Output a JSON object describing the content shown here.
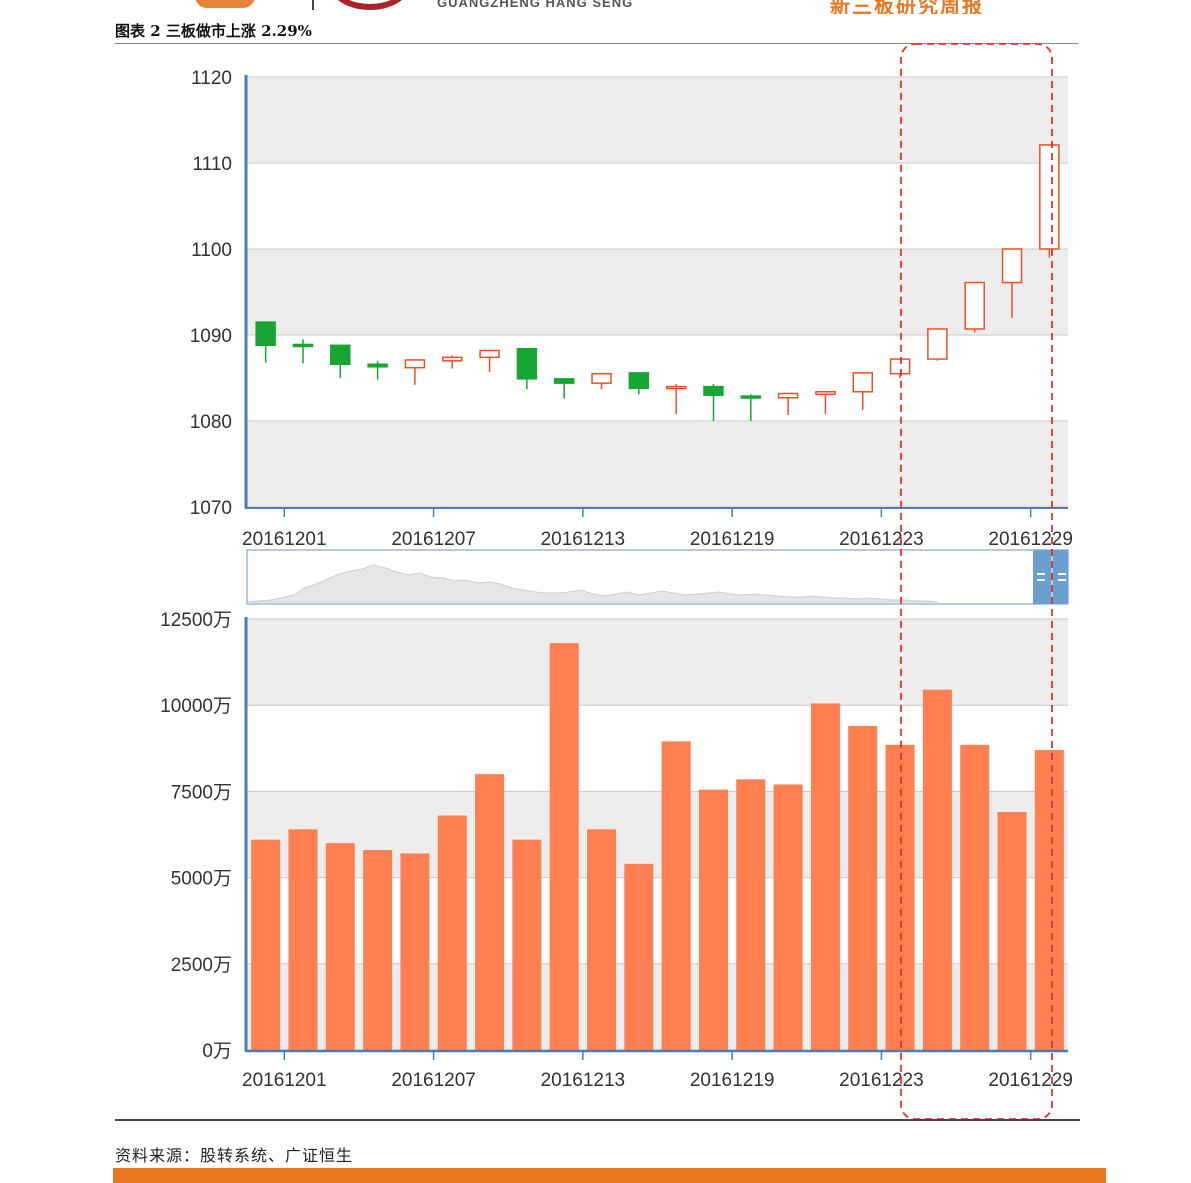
{
  "header": {
    "logo_text": "GUANGZHENG HANG SENG",
    "report_title": "新三板研究周报"
  },
  "figure": {
    "caption": "图表 2 三板做市上涨 2.29%"
  },
  "source_note": "资料来源：股转系统、广证恒生",
  "colors": {
    "up": "#f04e23",
    "down": "#17a634",
    "volume_bar": "#ff7f50",
    "grid_band": "#ededed",
    "axis": "#4a7fb5",
    "navigator_handle": "#6a9fd0",
    "highlight_box": "#e8322a",
    "footer_bar": "#e87722"
  },
  "chart_data": [
    {
      "type": "candlestick",
      "ylim": [
        1070,
        1120
      ],
      "yticks": [
        "1120",
        "1110",
        "1100",
        "1090",
        "1080",
        "1070"
      ],
      "xtick_labels": [
        "20161201",
        "20161207",
        "20161213",
        "20161219",
        "20161223",
        "20161229"
      ],
      "xtick_index": [
        1,
        5,
        9,
        13,
        17,
        21
      ],
      "candles": [
        {
          "open": 1091.5,
          "close": 1088.8,
          "high": 1091.5,
          "low": 1086.8
        },
        {
          "open": 1088.9,
          "close": 1088.7,
          "high": 1089.5,
          "low": 1086.7
        },
        {
          "open": 1088.8,
          "close": 1086.6,
          "high": 1088.8,
          "low": 1085.0
        },
        {
          "open": 1086.6,
          "close": 1086.3,
          "high": 1087.0,
          "low": 1084.8
        },
        {
          "open": 1086.2,
          "close": 1087.1,
          "high": 1087.1,
          "low": 1084.2
        },
        {
          "open": 1087.0,
          "close": 1087.4,
          "high": 1087.6,
          "low": 1086.1
        },
        {
          "open": 1087.4,
          "close": 1088.2,
          "high": 1088.2,
          "low": 1085.7
        },
        {
          "open": 1088.4,
          "close": 1084.9,
          "high": 1088.4,
          "low": 1083.7
        },
        {
          "open": 1084.9,
          "close": 1084.4,
          "high": 1084.9,
          "low": 1082.6
        },
        {
          "open": 1084.4,
          "close": 1085.5,
          "high": 1085.5,
          "low": 1083.7
        },
        {
          "open": 1085.6,
          "close": 1083.8,
          "high": 1085.6,
          "low": 1083.1
        },
        {
          "open": 1083.9,
          "close": 1084.0,
          "high": 1084.3,
          "low": 1080.8
        },
        {
          "open": 1084.0,
          "close": 1083.0,
          "high": 1084.3,
          "low": 1080.0
        },
        {
          "open": 1082.9,
          "close": 1082.8,
          "high": 1083.1,
          "low": 1080.0
        },
        {
          "open": 1082.7,
          "close": 1083.2,
          "high": 1083.2,
          "low": 1080.7
        },
        {
          "open": 1083.1,
          "close": 1083.4,
          "high": 1083.4,
          "low": 1080.8
        },
        {
          "open": 1083.4,
          "close": 1085.6,
          "high": 1085.6,
          "low": 1081.3
        },
        {
          "open": 1085.5,
          "close": 1087.2,
          "high": 1087.2,
          "low": 1085.0
        },
        {
          "open": 1087.2,
          "close": 1090.7,
          "high": 1090.7,
          "low": 1087.0
        },
        {
          "open": 1090.7,
          "close": 1096.1,
          "high": 1096.1,
          "low": 1090.3
        },
        {
          "open": 1096.1,
          "close": 1100.0,
          "high": 1100.0,
          "low": 1092.0
        },
        {
          "open": 1100.0,
          "close": 1112.1,
          "high": 1112.1,
          "low": 1099.0
        }
      ]
    },
    {
      "type": "bar",
      "ylim": [
        0,
        12500
      ],
      "yticks": [
        "12500万",
        "10000万",
        "7500万",
        "5000万",
        "2500万",
        "0万"
      ],
      "xtick_labels": [
        "20161201",
        "20161207",
        "20161213",
        "20161219",
        "20161223",
        "20161229"
      ],
      "xtick_index": [
        1,
        5,
        9,
        13,
        17,
        21
      ],
      "values": [
        6100,
        6400,
        6000,
        5800,
        5700,
        6800,
        8000,
        6100,
        11800,
        6400,
        5400,
        8950,
        7550,
        7850,
        7700,
        10050,
        9400,
        8850,
        10450,
        8850,
        6900,
        8700
      ]
    }
  ],
  "navigator": {
    "profile": [
      0,
      1,
      2,
      4,
      7,
      14,
      18,
      23,
      28,
      31,
      33,
      37,
      34,
      30,
      27,
      29,
      25,
      24,
      21,
      22,
      19,
      20,
      18,
      14,
      12,
      10,
      9,
      9,
      10,
      12,
      8,
      6,
      8,
      10,
      7,
      9,
      11,
      9,
      7,
      8,
      9,
      10,
      8,
      7,
      8,
      7,
      6,
      5,
      5,
      6,
      5,
      4,
      4,
      3,
      4,
      3,
      2,
      2,
      1,
      1,
      0
    ]
  }
}
